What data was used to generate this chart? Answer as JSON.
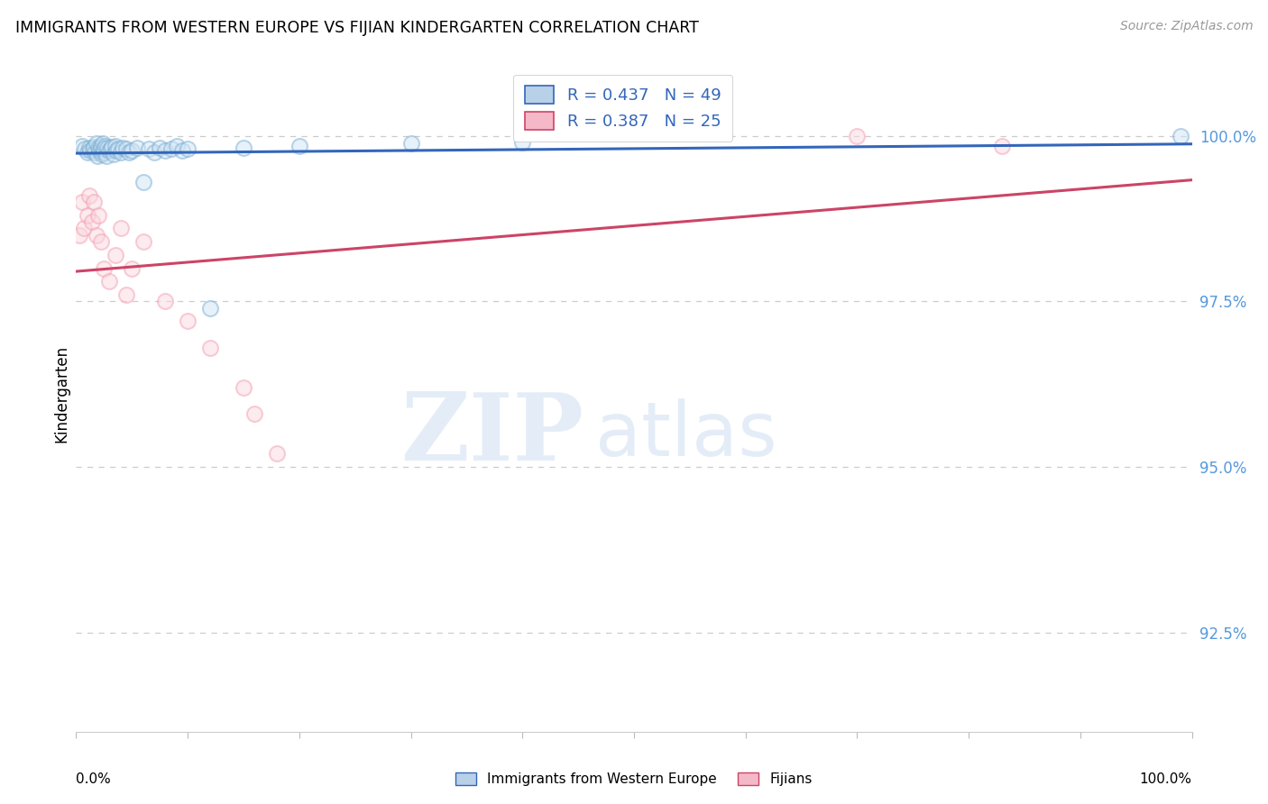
{
  "title": "IMMIGRANTS FROM WESTERN EUROPE VS FIJIAN KINDERGARTEN CORRELATION CHART",
  "source": "Source: ZipAtlas.com",
  "ylabel": "Kindergarten",
  "yticks": [
    92.5,
    95.0,
    97.5,
    100.0
  ],
  "ytick_labels": [
    "92.5%",
    "95.0%",
    "97.5%",
    "100.0%"
  ],
  "xlim": [
    0.0,
    1.0
  ],
  "ylim": [
    91.0,
    101.2
  ],
  "legend_label1": "Immigrants from Western Europe",
  "legend_label2": "Fijians",
  "R1": 0.437,
  "N1": 49,
  "R2": 0.387,
  "N2": 25,
  "blue_color": "#7BAFD4",
  "pink_color": "#F5A0B0",
  "blue_line_color": "#3366BB",
  "pink_line_color": "#CC4466",
  "blue_x": [
    0.005,
    0.008,
    0.01,
    0.012,
    0.013,
    0.015,
    0.016,
    0.017,
    0.018,
    0.019,
    0.02,
    0.021,
    0.022,
    0.022,
    0.023,
    0.024,
    0.025,
    0.025,
    0.026,
    0.027,
    0.028,
    0.03,
    0.031,
    0.032,
    0.034,
    0.035,
    0.036,
    0.038,
    0.04,
    0.042,
    0.045,
    0.047,
    0.05,
    0.055,
    0.06,
    0.065,
    0.07,
    0.075,
    0.08,
    0.085,
    0.09,
    0.095,
    0.1,
    0.12,
    0.15,
    0.2,
    0.3,
    0.4,
    0.99
  ],
  "blue_y": [
    99.85,
    99.8,
    99.75,
    99.82,
    99.78,
    99.8,
    99.83,
    99.75,
    99.88,
    99.7,
    99.82,
    99.78,
    99.8,
    99.85,
    99.72,
    99.88,
    99.75,
    99.8,
    99.85,
    99.7,
    99.82,
    99.78,
    99.8,
    99.83,
    99.72,
    99.85,
    99.78,
    99.8,
    99.75,
    99.82,
    99.8,
    99.75,
    99.78,
    99.82,
    99.3,
    99.8,
    99.75,
    99.82,
    99.78,
    99.8,
    99.85,
    99.78,
    99.8,
    97.4,
    99.82,
    99.85,
    99.88,
    99.9,
    100.0
  ],
  "pink_x": [
    0.003,
    0.005,
    0.007,
    0.01,
    0.012,
    0.014,
    0.016,
    0.018,
    0.02,
    0.022,
    0.025,
    0.03,
    0.035,
    0.04,
    0.045,
    0.05,
    0.06,
    0.08,
    0.1,
    0.12,
    0.15,
    0.16,
    0.18,
    0.7,
    0.83
  ],
  "pink_y": [
    98.5,
    99.0,
    98.6,
    98.8,
    99.1,
    98.7,
    99.0,
    98.5,
    98.8,
    98.4,
    98.0,
    97.8,
    98.2,
    98.6,
    97.6,
    98.0,
    98.4,
    97.5,
    97.2,
    96.8,
    96.2,
    95.8,
    95.2,
    100.0,
    99.85
  ],
  "watermark_zip": "ZIP",
  "watermark_atlas": "atlas",
  "background_color": "#ffffff",
  "grid_color": "#cccccc",
  "ytick_color": "#5599DD"
}
